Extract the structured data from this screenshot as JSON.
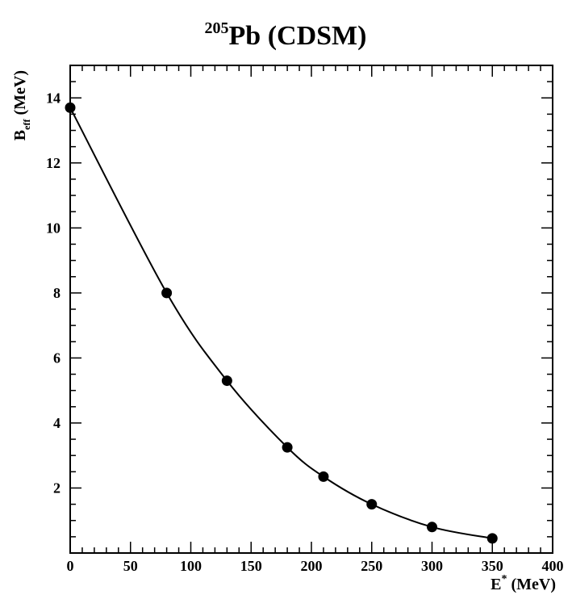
{
  "chart_data": {
    "type": "line",
    "title": {
      "isotope_mass": "205",
      "element": "Pb",
      "model": " (CDSM)"
    },
    "xlabel": {
      "symbol": "E",
      "superscript": "*",
      "unit": " (MeV)"
    },
    "ylabel": {
      "symbol": "B",
      "subscript": "eff",
      "unit": " (MeV)"
    },
    "xlim": [
      0,
      400
    ],
    "ylim": [
      0,
      15
    ],
    "x_major_ticks": [
      0,
      50,
      100,
      150,
      200,
      250,
      300,
      350,
      400
    ],
    "x_tick_labels": [
      "0",
      "50",
      "100",
      "150",
      "200",
      "250",
      "300",
      "350",
      "400"
    ],
    "y_major_ticks": [
      2,
      4,
      6,
      8,
      10,
      12,
      14
    ],
    "y_tick_labels": [
      "2",
      "4",
      "6",
      "8",
      "10",
      "12",
      "14"
    ],
    "grid": false,
    "legend": "none",
    "series": [
      {
        "x": [
          0,
          80,
          130,
          180,
          210,
          250,
          300,
          350
        ],
        "y": [
          13.7,
          8.0,
          5.3,
          3.25,
          2.35,
          1.5,
          0.8,
          0.45
        ],
        "marker": "filled-circle",
        "color": "#000000"
      }
    ]
  }
}
